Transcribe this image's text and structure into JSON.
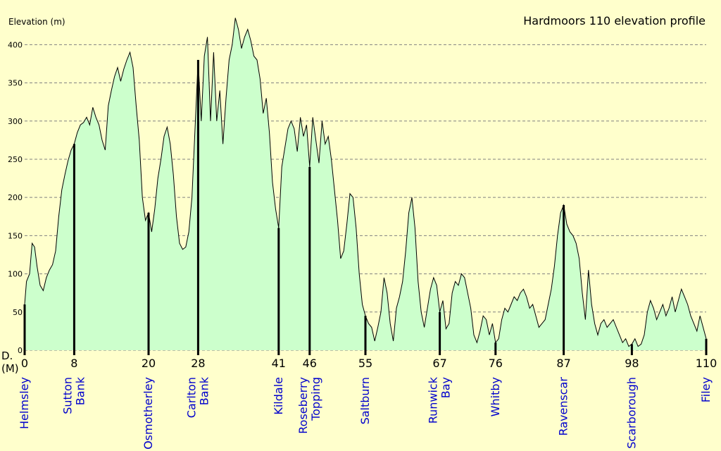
{
  "chart_data": {
    "type": "area",
    "title": "Hardmoors 110 elevation profile",
    "ylabel": "Elevation (m)",
    "xlabel_lines": [
      "D.",
      "(M)"
    ],
    "xlim": [
      0,
      110
    ],
    "ylim": [
      0,
      440
    ],
    "yticks": [
      0,
      50,
      100,
      150,
      200,
      250,
      300,
      350,
      400
    ],
    "grid": true,
    "colors": {
      "fill": "#ccffcc",
      "line": "#000000",
      "grid": "#808080",
      "place_label": "#0000cc",
      "background": "#ffffcc"
    },
    "profile": [
      [
        0,
        60
      ],
      [
        0.3,
        90
      ],
      [
        0.8,
        100
      ],
      [
        1.2,
        140
      ],
      [
        1.6,
        135
      ],
      [
        2,
        110
      ],
      [
        2.5,
        85
      ],
      [
        3,
        78
      ],
      [
        3.5,
        95
      ],
      [
        4,
        105
      ],
      [
        4.5,
        112
      ],
      [
        5,
        130
      ],
      [
        5.5,
        175
      ],
      [
        6,
        210
      ],
      [
        6.5,
        230
      ],
      [
        7,
        248
      ],
      [
        7.5,
        262
      ],
      [
        8,
        270
      ],
      [
        8.5,
        285
      ],
      [
        9,
        295
      ],
      [
        9.5,
        298
      ],
      [
        10,
        305
      ],
      [
        10.5,
        295
      ],
      [
        11,
        318
      ],
      [
        11.5,
        305
      ],
      [
        12,
        295
      ],
      [
        12.5,
        275
      ],
      [
        13,
        262
      ],
      [
        13.5,
        320
      ],
      [
        14,
        340
      ],
      [
        14.5,
        358
      ],
      [
        15,
        370
      ],
      [
        15.5,
        352
      ],
      [
        16,
        368
      ],
      [
        16.5,
        380
      ],
      [
        17,
        390
      ],
      [
        17.5,
        370
      ],
      [
        18,
        320
      ],
      [
        18.5,
        275
      ],
      [
        19,
        200
      ],
      [
        19.5,
        170
      ],
      [
        20,
        180
      ],
      [
        20.5,
        155
      ],
      [
        21,
        185
      ],
      [
        21.5,
        225
      ],
      [
        22,
        250
      ],
      [
        22.5,
        280
      ],
      [
        23,
        292
      ],
      [
        23.5,
        270
      ],
      [
        24,
        230
      ],
      [
        24.5,
        175
      ],
      [
        25,
        140
      ],
      [
        25.5,
        132
      ],
      [
        26,
        135
      ],
      [
        26.5,
        155
      ],
      [
        27,
        200
      ],
      [
        27.5,
        290
      ],
      [
        28,
        380
      ],
      [
        28.5,
        300
      ],
      [
        29,
        385
      ],
      [
        29.5,
        410
      ],
      [
        30,
        300
      ],
      [
        30.5,
        390
      ],
      [
        31,
        300
      ],
      [
        31.5,
        340
      ],
      [
        32,
        270
      ],
      [
        32.5,
        330
      ],
      [
        33,
        380
      ],
      [
        33.5,
        400
      ],
      [
        34,
        435
      ],
      [
        34.5,
        420
      ],
      [
        35,
        395
      ],
      [
        35.5,
        410
      ],
      [
        36,
        420
      ],
      [
        36.5,
        405
      ],
      [
        37,
        385
      ],
      [
        37.5,
        380
      ],
      [
        38,
        355
      ],
      [
        38.5,
        310
      ],
      [
        39,
        330
      ],
      [
        39.5,
        285
      ],
      [
        40,
        220
      ],
      [
        40.5,
        185
      ],
      [
        41,
        160
      ],
      [
        41.5,
        240
      ],
      [
        42,
        265
      ],
      [
        42.5,
        290
      ],
      [
        43,
        300
      ],
      [
        43.5,
        290
      ],
      [
        44,
        260
      ],
      [
        44.5,
        305
      ],
      [
        45,
        280
      ],
      [
        45.5,
        295
      ],
      [
        46,
        240
      ],
      [
        46.5,
        305
      ],
      [
        47,
        275
      ],
      [
        47.5,
        245
      ],
      [
        48,
        300
      ],
      [
        48.5,
        270
      ],
      [
        49,
        280
      ],
      [
        49.5,
        250
      ],
      [
        50,
        210
      ],
      [
        50.5,
        170
      ],
      [
        51,
        120
      ],
      [
        51.5,
        130
      ],
      [
        52,
        165
      ],
      [
        52.5,
        205
      ],
      [
        53,
        200
      ],
      [
        53.5,
        160
      ],
      [
        54,
        100
      ],
      [
        54.5,
        60
      ],
      [
        55,
        45
      ],
      [
        55.5,
        35
      ],
      [
        56,
        30
      ],
      [
        56.5,
        12
      ],
      [
        57,
        30
      ],
      [
        57.5,
        50
      ],
      [
        58,
        95
      ],
      [
        58.5,
        75
      ],
      [
        59,
        35
      ],
      [
        59.5,
        12
      ],
      [
        60,
        55
      ],
      [
        60.5,
        70
      ],
      [
        61,
        90
      ],
      [
        61.5,
        130
      ],
      [
        62,
        180
      ],
      [
        62.5,
        200
      ],
      [
        63,
        160
      ],
      [
        63.5,
        90
      ],
      [
        64,
        50
      ],
      [
        64.5,
        30
      ],
      [
        65,
        55
      ],
      [
        65.5,
        80
      ],
      [
        66,
        95
      ],
      [
        66.5,
        85
      ],
      [
        67,
        50
      ],
      [
        67.5,
        65
      ],
      [
        68,
        28
      ],
      [
        68.5,
        35
      ],
      [
        69,
        75
      ],
      [
        69.5,
        90
      ],
      [
        70,
        85
      ],
      [
        70.5,
        100
      ],
      [
        71,
        95
      ],
      [
        71.5,
        75
      ],
      [
        72,
        55
      ],
      [
        72.5,
        20
      ],
      [
        73,
        10
      ],
      [
        73.5,
        25
      ],
      [
        74,
        45
      ],
      [
        74.5,
        40
      ],
      [
        75,
        20
      ],
      [
        75.5,
        35
      ],
      [
        76,
        10
      ],
      [
        76.5,
        15
      ],
      [
        77,
        40
      ],
      [
        77.5,
        55
      ],
      [
        78,
        50
      ],
      [
        78.5,
        60
      ],
      [
        79,
        70
      ],
      [
        79.5,
        65
      ],
      [
        80,
        75
      ],
      [
        80.5,
        80
      ],
      [
        81,
        70
      ],
      [
        81.5,
        55
      ],
      [
        82,
        60
      ],
      [
        82.5,
        45
      ],
      [
        83,
        30
      ],
      [
        83.5,
        35
      ],
      [
        84,
        40
      ],
      [
        84.5,
        60
      ],
      [
        85,
        80
      ],
      [
        85.5,
        110
      ],
      [
        86,
        150
      ],
      [
        86.5,
        180
      ],
      [
        87,
        190
      ],
      [
        87.5,
        165
      ],
      [
        88,
        155
      ],
      [
        88.5,
        150
      ],
      [
        89,
        140
      ],
      [
        89.5,
        120
      ],
      [
        90,
        75
      ],
      [
        90.5,
        40
      ],
      [
        91,
        105
      ],
      [
        91.5,
        60
      ],
      [
        92,
        35
      ],
      [
        92.5,
        20
      ],
      [
        93,
        35
      ],
      [
        93.5,
        40
      ],
      [
        94,
        30
      ],
      [
        94.5,
        35
      ],
      [
        95,
        40
      ],
      [
        95.5,
        30
      ],
      [
        96,
        20
      ],
      [
        96.5,
        10
      ],
      [
        97,
        15
      ],
      [
        97.5,
        5
      ],
      [
        98,
        8
      ],
      [
        98.5,
        15
      ],
      [
        99,
        5
      ],
      [
        99.5,
        8
      ],
      [
        100,
        20
      ],
      [
        100.5,
        50
      ],
      [
        101,
        65
      ],
      [
        101.5,
        55
      ],
      [
        102,
        40
      ],
      [
        102.5,
        50
      ],
      [
        103,
        60
      ],
      [
        103.5,
        45
      ],
      [
        104,
        55
      ],
      [
        104.5,
        70
      ],
      [
        105,
        50
      ],
      [
        105.5,
        65
      ],
      [
        106,
        80
      ],
      [
        106.5,
        70
      ],
      [
        107,
        60
      ],
      [
        107.5,
        45
      ],
      [
        108,
        35
      ],
      [
        108.5,
        25
      ],
      [
        109,
        45
      ],
      [
        109.5,
        30
      ],
      [
        110,
        15
      ]
    ],
    "checkpoints": [
      {
        "x": 0,
        "tick": "0",
        "name": [
          "Helmsley"
        ]
      },
      {
        "x": 8,
        "tick": "8",
        "name": [
          "Sutton",
          "Bank"
        ]
      },
      {
        "x": 20,
        "tick": "20",
        "name": [
          "Osmotherley"
        ]
      },
      {
        "x": 28,
        "tick": "28",
        "name": [
          "Carlton",
          "Bank"
        ]
      },
      {
        "x": 41,
        "tick": "41",
        "name": [
          "Kildale"
        ]
      },
      {
        "x": 46,
        "tick": "46",
        "name": [
          "Roseberry",
          "Topping"
        ]
      },
      {
        "x": 55,
        "tick": "55",
        "name": [
          "Saltburn"
        ]
      },
      {
        "x": 67,
        "tick": "67",
        "name": [
          "Runwick",
          "Bay"
        ]
      },
      {
        "x": 76,
        "tick": "76",
        "name": [
          "Whitby"
        ]
      },
      {
        "x": 87,
        "tick": "87",
        "name": [
          "Ravenscar"
        ]
      },
      {
        "x": 98,
        "tick": "98",
        "name": [
          "Scarborough"
        ]
      },
      {
        "x": 110,
        "tick": "110",
        "name": [
          "Filey"
        ]
      }
    ]
  }
}
